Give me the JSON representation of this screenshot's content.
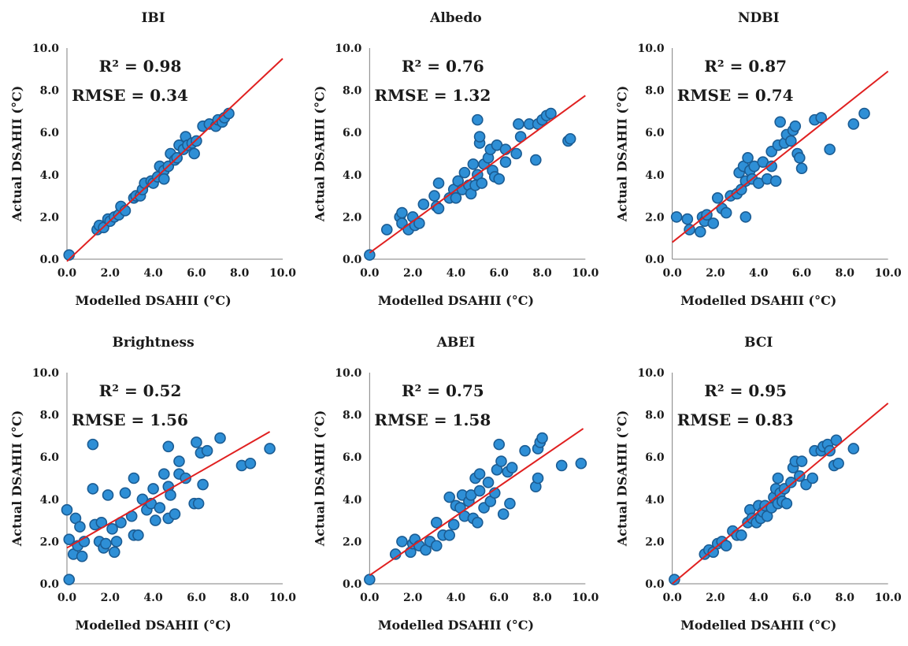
{
  "figure": {
    "xlabel": "Modelled DSAHII (°C)",
    "ylabel": "Actual DSAHII (°C)",
    "tick_labels": [
      "0.0",
      "2.0",
      "4.0",
      "6.0",
      "8.0",
      "10.0"
    ]
  },
  "colors": {
    "point_fill": "#2e8fd6",
    "point_stroke": "#1b5c93",
    "fit_line": "#e02020"
  },
  "chart_data": [
    {
      "type": "scatter",
      "title": "IBI",
      "r2_text": "R² = 0.98",
      "rmse_text": "RMSE = 0.34",
      "xlabel": "Modelled DSAHII (°C)",
      "ylabel": "Actual DSAHII (°C)",
      "xlim": [
        0,
        10
      ],
      "ylim": [
        0,
        10
      ],
      "fit": {
        "x0": 0,
        "y0": -0.1,
        "x1": 10,
        "y1": 9.5
      },
      "points": [
        [
          0.1,
          0.2
        ],
        [
          1.4,
          1.4
        ],
        [
          1.5,
          1.6
        ],
        [
          1.7,
          1.5
        ],
        [
          1.9,
          1.9
        ],
        [
          2.0,
          1.8
        ],
        [
          2.2,
          2.0
        ],
        [
          2.4,
          2.1
        ],
        [
          2.5,
          2.5
        ],
        [
          2.7,
          2.3
        ],
        [
          3.1,
          2.9
        ],
        [
          3.2,
          3.0
        ],
        [
          3.4,
          3.0
        ],
        [
          3.5,
          3.3
        ],
        [
          3.6,
          3.6
        ],
        [
          3.9,
          3.7
        ],
        [
          4.0,
          3.6
        ],
        [
          4.2,
          3.9
        ],
        [
          4.3,
          4.4
        ],
        [
          4.5,
          4.2
        ],
        [
          4.5,
          3.8
        ],
        [
          4.7,
          4.4
        ],
        [
          4.8,
          5.0
        ],
        [
          5.0,
          4.7
        ],
        [
          5.1,
          4.8
        ],
        [
          5.2,
          5.4
        ],
        [
          5.4,
          5.2
        ],
        [
          5.5,
          5.8
        ],
        [
          5.6,
          5.4
        ],
        [
          5.8,
          5.5
        ],
        [
          5.9,
          5.0
        ],
        [
          6.0,
          5.6
        ],
        [
          6.3,
          6.3
        ],
        [
          6.6,
          6.4
        ],
        [
          6.9,
          6.3
        ],
        [
          7.0,
          6.6
        ],
        [
          7.2,
          6.5
        ],
        [
          7.3,
          6.7
        ],
        [
          7.5,
          6.9
        ]
      ]
    },
    {
      "type": "scatter",
      "title": "Albedo",
      "r2_text": "R² = 0.76",
      "rmse_text": "RMSE = 1.32",
      "xlabel": "Modelled DSAHII (°C)",
      "ylabel": "Actual DSAHII (°C)",
      "xlim": [
        0,
        10
      ],
      "ylim": [
        0,
        10
      ],
      "fit": {
        "x0": 0,
        "y0": 0.3,
        "x1": 10,
        "y1": 7.75
      },
      "points": [
        [
          0.0,
          0.2
        ],
        [
          0.8,
          1.4
        ],
        [
          1.4,
          2.0
        ],
        [
          1.5,
          1.7
        ],
        [
          1.5,
          2.2
        ],
        [
          1.8,
          1.4
        ],
        [
          2.0,
          2.0
        ],
        [
          2.1,
          1.6
        ],
        [
          2.3,
          1.7
        ],
        [
          2.5,
          2.6
        ],
        [
          3.0,
          3.0
        ],
        [
          3.1,
          2.5
        ],
        [
          3.2,
          3.6
        ],
        [
          3.2,
          2.4
        ],
        [
          3.7,
          2.9
        ],
        [
          3.9,
          3.3
        ],
        [
          4.0,
          2.9
        ],
        [
          4.1,
          3.7
        ],
        [
          4.3,
          3.3
        ],
        [
          4.4,
          4.1
        ],
        [
          4.6,
          3.5
        ],
        [
          4.7,
          3.1
        ],
        [
          4.8,
          4.5
        ],
        [
          4.9,
          3.5
        ],
        [
          5.0,
          6.6
        ],
        [
          5.0,
          4.0
        ],
        [
          5.1,
          5.5
        ],
        [
          5.1,
          5.8
        ],
        [
          5.2,
          3.6
        ],
        [
          5.3,
          4.5
        ],
        [
          5.5,
          4.8
        ],
        [
          5.6,
          5.2
        ],
        [
          5.7,
          4.2
        ],
        [
          5.8,
          3.9
        ],
        [
          5.9,
          5.4
        ],
        [
          6.0,
          3.8
        ],
        [
          6.3,
          4.6
        ],
        [
          6.3,
          5.2
        ],
        [
          6.8,
          5.0
        ],
        [
          6.9,
          6.4
        ],
        [
          7.0,
          5.8
        ],
        [
          7.4,
          6.4
        ],
        [
          7.7,
          4.7
        ],
        [
          7.8,
          6.4
        ],
        [
          8.0,
          6.6
        ],
        [
          8.2,
          6.8
        ],
        [
          8.4,
          6.9
        ],
        [
          9.2,
          5.6
        ],
        [
          9.3,
          5.7
        ]
      ]
    },
    {
      "type": "scatter",
      "title": "NDBI",
      "r2_text": "R² = 0.87",
      "rmse_text": "RMSE = 0.74",
      "xlabel": "Modelled DSAHII (°C)",
      "ylabel": "Actual DSAHII (°C)",
      "xlim": [
        0,
        10
      ],
      "ylim": [
        0,
        10
      ],
      "fit": {
        "x0": 0,
        "y0": 0.8,
        "x1": 10,
        "y1": 8.9
      },
      "points": [
        [
          0.2,
          2.0
        ],
        [
          0.7,
          1.9
        ],
        [
          0.8,
          1.4
        ],
        [
          1.3,
          1.3
        ],
        [
          1.4,
          2.0
        ],
        [
          1.5,
          1.8
        ],
        [
          1.6,
          2.1
        ],
        [
          1.9,
          1.7
        ],
        [
          2.1,
          2.9
        ],
        [
          2.3,
          2.4
        ],
        [
          2.5,
          2.2
        ],
        [
          2.7,
          3.0
        ],
        [
          3.0,
          3.1
        ],
        [
          3.1,
          4.1
        ],
        [
          3.2,
          3.3
        ],
        [
          3.3,
          4.4
        ],
        [
          3.4,
          3.7
        ],
        [
          3.4,
          2.0
        ],
        [
          3.5,
          4.8
        ],
        [
          3.6,
          4.2
        ],
        [
          3.7,
          3.8
        ],
        [
          3.8,
          4.4
        ],
        [
          4.0,
          3.6
        ],
        [
          4.2,
          4.6
        ],
        [
          4.4,
          3.8
        ],
        [
          4.6,
          4.4
        ],
        [
          4.6,
          5.1
        ],
        [
          4.8,
          3.7
        ],
        [
          4.9,
          5.4
        ],
        [
          5.0,
          6.5
        ],
        [
          5.2,
          5.5
        ],
        [
          5.3,
          5.9
        ],
        [
          5.5,
          5.6
        ],
        [
          5.6,
          6.1
        ],
        [
          5.7,
          6.3
        ],
        [
          5.8,
          5.0
        ],
        [
          5.9,
          4.8
        ],
        [
          6.0,
          4.3
        ],
        [
          6.6,
          6.6
        ],
        [
          6.9,
          6.7
        ],
        [
          7.3,
          5.2
        ],
        [
          8.4,
          6.4
        ],
        [
          8.9,
          6.9
        ]
      ]
    },
    {
      "type": "scatter",
      "title": "Brightness",
      "r2_text": "R² = 0.52",
      "rmse_text": "RMSE = 1.56",
      "xlabel": "Modelled DSAHII (°C)",
      "ylabel": "Actual DSAHII (°C)",
      "xlim": [
        0,
        10
      ],
      "ylim": [
        0,
        10
      ],
      "fit": {
        "x0": 0,
        "y0": 1.7,
        "x1": 9.4,
        "y1": 7.2
      },
      "points": [
        [
          0.0,
          3.5
        ],
        [
          0.1,
          0.2
        ],
        [
          0.1,
          2.1
        ],
        [
          0.3,
          1.4
        ],
        [
          0.4,
          3.1
        ],
        [
          0.5,
          1.8
        ],
        [
          0.6,
          2.7
        ],
        [
          0.7,
          1.3
        ],
        [
          0.8,
          2.0
        ],
        [
          1.2,
          4.5
        ],
        [
          1.2,
          6.6
        ],
        [
          1.3,
          2.8
        ],
        [
          1.5,
          2.0
        ],
        [
          1.6,
          2.9
        ],
        [
          1.7,
          1.7
        ],
        [
          1.8,
          1.9
        ],
        [
          1.9,
          4.2
        ],
        [
          2.1,
          2.6
        ],
        [
          2.2,
          1.5
        ],
        [
          2.3,
          2.0
        ],
        [
          2.5,
          2.9
        ],
        [
          2.7,
          4.3
        ],
        [
          3.0,
          3.2
        ],
        [
          3.1,
          5.0
        ],
        [
          3.1,
          2.3
        ],
        [
          3.3,
          2.3
        ],
        [
          3.5,
          4.0
        ],
        [
          3.7,
          3.5
        ],
        [
          3.9,
          3.8
        ],
        [
          4.0,
          4.5
        ],
        [
          4.1,
          3.0
        ],
        [
          4.3,
          3.6
        ],
        [
          4.5,
          5.2
        ],
        [
          4.7,
          3.1
        ],
        [
          4.7,
          4.6
        ],
        [
          4.7,
          6.5
        ],
        [
          4.8,
          4.2
        ],
        [
          5.0,
          3.3
        ],
        [
          5.2,
          5.2
        ],
        [
          5.2,
          5.8
        ],
        [
          5.5,
          5.0
        ],
        [
          5.9,
          3.8
        ],
        [
          6.0,
          6.7
        ],
        [
          6.1,
          3.8
        ],
        [
          6.2,
          6.2
        ],
        [
          6.3,
          4.7
        ],
        [
          6.5,
          6.3
        ],
        [
          7.1,
          6.9
        ],
        [
          8.1,
          5.6
        ],
        [
          8.5,
          5.7
        ],
        [
          9.4,
          6.4
        ]
      ]
    },
    {
      "type": "scatter",
      "title": "ABEI",
      "r2_text": "R² = 0.75",
      "rmse_text": "RMSE = 1.58",
      "xlabel": "Modelled DSAHII (°C)",
      "ylabel": "Actual DSAHII (°C)",
      "xlim": [
        0,
        10
      ],
      "ylim": [
        0,
        10
      ],
      "fit": {
        "x0": 0,
        "y0": 0.4,
        "x1": 9.9,
        "y1": 7.35
      },
      "points": [
        [
          0.0,
          0.2
        ],
        [
          1.2,
          1.4
        ],
        [
          1.5,
          2.0
        ],
        [
          1.9,
          1.5
        ],
        [
          2.0,
          1.9
        ],
        [
          2.1,
          2.1
        ],
        [
          2.3,
          1.8
        ],
        [
          2.6,
          1.6
        ],
        [
          2.8,
          2.0
        ],
        [
          3.1,
          1.8
        ],
        [
          3.1,
          2.9
        ],
        [
          3.4,
          2.3
        ],
        [
          3.7,
          2.3
        ],
        [
          3.7,
          4.1
        ],
        [
          3.9,
          2.8
        ],
        [
          4.0,
          3.7
        ],
        [
          4.2,
          3.6
        ],
        [
          4.3,
          4.2
        ],
        [
          4.4,
          3.2
        ],
        [
          4.6,
          3.9
        ],
        [
          4.7,
          4.2
        ],
        [
          4.8,
          3.1
        ],
        [
          4.9,
          5.0
        ],
        [
          5.0,
          2.9
        ],
        [
          5.1,
          4.4
        ],
        [
          5.1,
          5.2
        ],
        [
          5.3,
          3.6
        ],
        [
          5.5,
          4.8
        ],
        [
          5.6,
          3.9
        ],
        [
          5.8,
          4.3
        ],
        [
          5.9,
          5.4
        ],
        [
          6.0,
          6.6
        ],
        [
          6.1,
          5.8
        ],
        [
          6.2,
          3.3
        ],
        [
          6.4,
          5.3
        ],
        [
          6.5,
          3.8
        ],
        [
          6.6,
          5.5
        ],
        [
          7.2,
          6.3
        ],
        [
          7.7,
          4.6
        ],
        [
          7.8,
          5.0
        ],
        [
          7.8,
          6.4
        ],
        [
          7.9,
          6.7
        ],
        [
          8.0,
          6.9
        ],
        [
          8.9,
          5.6
        ],
        [
          9.8,
          5.7
        ]
      ]
    },
    {
      "type": "scatter",
      "title": "BCI",
      "r2_text": "R² = 0.95",
      "rmse_text": "RMSE = 0.83",
      "xlabel": "Modelled DSAHII (°C)",
      "ylabel": "Actual DSAHII (°C)",
      "xlim": [
        0,
        10
      ],
      "ylim": [
        0,
        10
      ],
      "fit": {
        "x0": 0,
        "y0": 0.0,
        "x1": 10,
        "y1": 8.55
      },
      "points": [
        [
          0.1,
          0.2
        ],
        [
          1.5,
          1.4
        ],
        [
          1.7,
          1.6
        ],
        [
          1.9,
          1.5
        ],
        [
          2.1,
          1.9
        ],
        [
          2.3,
          2.0
        ],
        [
          2.5,
          1.8
        ],
        [
          2.8,
          2.5
        ],
        [
          3.0,
          2.3
        ],
        [
          3.2,
          2.3
        ],
        [
          3.5,
          2.9
        ],
        [
          3.6,
          3.5
        ],
        [
          3.7,
          3.1
        ],
        [
          3.9,
          2.9
        ],
        [
          4.0,
          3.7
        ],
        [
          4.1,
          3.1
        ],
        [
          4.2,
          3.4
        ],
        [
          4.3,
          3.7
        ],
        [
          4.4,
          3.2
        ],
        [
          4.6,
          3.6
        ],
        [
          4.7,
          4.1
        ],
        [
          4.8,
          4.5
        ],
        [
          4.9,
          3.8
        ],
        [
          4.9,
          5.0
        ],
        [
          5.0,
          4.3
        ],
        [
          5.1,
          3.9
        ],
        [
          5.2,
          4.5
        ],
        [
          5.3,
          3.8
        ],
        [
          5.5,
          4.8
        ],
        [
          5.6,
          5.5
        ],
        [
          5.7,
          5.8
        ],
        [
          5.9,
          5.1
        ],
        [
          6.0,
          5.8
        ],
        [
          6.2,
          4.7
        ],
        [
          6.5,
          5.0
        ],
        [
          6.6,
          6.3
        ],
        [
          6.9,
          6.3
        ],
        [
          7.0,
          6.5
        ],
        [
          7.2,
          6.6
        ],
        [
          7.3,
          6.3
        ],
        [
          7.5,
          5.6
        ],
        [
          7.6,
          6.8
        ],
        [
          7.7,
          5.7
        ],
        [
          8.4,
          6.4
        ]
      ]
    }
  ]
}
